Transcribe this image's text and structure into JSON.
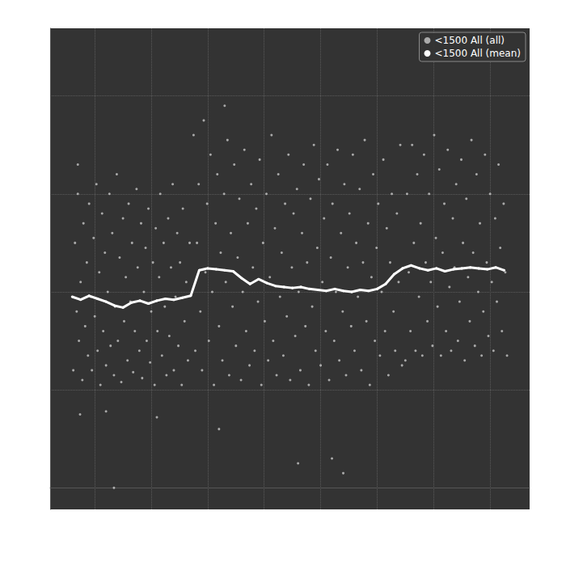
{
  "chart_data": {
    "type": "scatter",
    "xlim": [
      21,
      870
    ],
    "xticks": [
      100,
      200,
      300,
      400,
      500,
      600,
      700,
      800
    ],
    "ylim": [
      -22,
      469
    ],
    "yticks": [
      0,
      100,
      200,
      300,
      400
    ],
    "grid": true,
    "tick_labels": false,
    "legend": "upper right",
    "series": [
      {
        "name": "<1500 All (all)",
        "color": "#c8c8c8",
        "type": "scatter",
        "marker": "circle",
        "x": [
          62,
          65,
          68,
          70,
          72,
          75,
          78,
          80,
          83,
          86,
          88,
          90,
          93,
          95,
          98,
          100,
          103,
          105,
          108,
          110,
          113,
          115,
          118,
          120,
          123,
          126,
          128,
          131,
          134,
          136,
          139,
          141,
          144,
          147,
          150,
          152,
          155,
          158,
          160,
          163,
          166,
          168,
          171,
          174,
          176,
          179,
          182,
          184,
          187,
          190,
          192,
          195,
          198,
          200,
          203,
          206,
          208,
          211,
          214,
          216,
          219,
          222,
          224,
          227,
          230,
          232,
          235,
          238,
          240,
          243,
          246,
          248,
          251,
          254,
          256,
          259,
          262,
          265,
          268,
          74,
          120,
          210,
          134,
          70,
          275,
          278,
          281,
          284,
          287,
          290,
          293,
          296,
          299,
          302,
          305,
          308,
          311,
          314,
          317,
          320,
          323,
          326,
          329,
          332,
          335,
          338,
          341,
          344,
          347,
          350,
          353,
          356,
          359,
          362,
          365,
          368,
          371,
          374,
          377,
          380,
          383,
          386,
          389,
          392,
          395,
          398,
          401,
          404,
          407,
          410,
          413,
          416,
          419,
          422,
          425,
          428,
          431,
          434,
          437,
          440,
          443,
          446,
          449,
          452,
          455,
          458,
          461,
          464,
          467,
          470,
          473,
          476,
          479,
          482,
          485,
          488,
          491,
          494,
          497,
          500,
          503,
          506,
          509,
          512,
          515,
          518,
          521,
          524,
          527,
          530,
          533,
          536,
          539,
          542,
          545,
          548,
          551,
          554,
          557,
          560,
          563,
          566,
          569,
          572,
          575,
          578,
          581,
          584,
          587,
          590,
          593,
          596,
          599,
          602,
          605,
          608,
          611,
          614,
          617,
          620,
          623,
          626,
          629,
          632,
          635,
          638,
          641,
          644,
          320,
          460,
          520,
          540,
          330,
          650,
          653,
          656,
          659,
          662,
          665,
          668,
          671,
          674,
          677,
          680,
          683,
          686,
          689,
          692,
          695,
          698,
          701,
          704,
          707,
          710,
          713,
          716,
          719,
          722,
          725,
          728,
          731,
          734,
          737,
          740,
          743,
          746,
          749,
          752,
          755,
          758,
          761,
          764,
          767,
          770,
          773,
          776,
          779,
          782,
          785,
          788,
          791,
          794,
          797,
          800,
          803,
          806,
          809,
          812,
          815,
          818,
          821,
          824,
          827,
          830
        ],
        "values": [
          120,
          250,
          180,
          300,
          150,
          210,
          110,
          270,
          165,
          230,
          135,
          290,
          195,
          120,
          255,
          175,
          310,
          140,
          220,
          105,
          280,
          160,
          240,
          125,
          200,
          300,
          145,
          260,
          115,
          185,
          320,
          150,
          235,
          108,
          275,
          170,
          215,
          130,
          290,
          190,
          250,
          118,
          160,
          305,
          225,
          140,
          270,
          112,
          200,
          245,
          150,
          285,
          128,
          180,
          230,
          105,
          265,
          160,
          215,
          300,
          135,
          250,
          185,
          115,
          275,
          155,
          225,
          310,
          120,
          195,
          260,
          145,
          230,
          105,
          285,
          170,
          210,
          130,
          250,
          75,
          78,
          72,
          0,
          330,
          360,
          140,
          250,
          310,
          180,
          120,
          375,
          220,
          290,
          150,
          340,
          200,
          105,
          270,
          320,
          165,
          240,
          130,
          300,
          210,
          355,
          115,
          260,
          185,
          330,
          145,
          235,
          295,
          110,
          200,
          345,
          160,
          270,
          125,
          310,
          225,
          140,
          285,
          190,
          335,
          105,
          250,
          170,
          300,
          130,
          215,
          360,
          150,
          265,
          115,
          320,
          195,
          240,
          135,
          290,
          175,
          340,
          110,
          225,
          280,
          155,
          305,
          200,
          120,
          260,
          330,
          165,
          230,
          105,
          295,
          185,
          350,
          140,
          245,
          315,
          125,
          210,
          275,
          160,
          330,
          110,
          235,
          290,
          150,
          200,
          345,
          130,
          260,
          180,
          310,
          115,
          225,
          280,
          165,
          340,
          140,
          250,
          195,
          305,
          120,
          230,
          355,
          170,
          270,
          105,
          215,
          320,
          150,
          245,
          290,
          135,
          200,
          335,
          160,
          265,
          115,
          230,
          300,
          180,
          140,
          280,
          210,
          350,
          125,
          60,
          25,
          30,
          15,
          390,
          130,
          300,
          220,
          160,
          350,
          250,
          140,
          320,
          195,
          270,
          135,
          340,
          230,
          170,
          300,
          210,
          145,
          360,
          255,
          185,
          325,
          135,
          240,
          290,
          160,
          345,
          205,
          140,
          275,
          225,
          310,
          150,
          190,
          335,
          250,
          130,
          295,
          215,
          170,
          355,
          240,
          145,
          320,
          200,
          270,
          135,
          180,
          340,
          230,
          155,
          300,
          210,
          140,
          275,
          190,
          330,
          245,
          160,
          290,
          220,
          135
        ]
      },
      {
        "name": "<1500 All (mean)",
        "color": "#ffffff",
        "type": "line",
        "marker": "circle",
        "x": [
          60,
          75,
          90,
          105,
          120,
          135,
          150,
          165,
          180,
          195,
          210,
          225,
          240,
          255,
          270,
          285,
          300,
          315,
          330,
          345,
          360,
          375,
          390,
          405,
          420,
          435,
          450,
          465,
          480,
          495,
          510,
          525,
          540,
          555,
          570,
          585,
          600,
          615,
          630,
          645,
          660,
          675,
          690,
          705,
          720,
          735,
          750,
          765,
          780,
          795,
          810,
          825
        ],
        "values": [
          195,
          192,
          196,
          193,
          190,
          186,
          184,
          189,
          191,
          188,
          191,
          193,
          192,
          194,
          196,
          222,
          224,
          223,
          222,
          221,
          214,
          208,
          213,
          209,
          206,
          205,
          204,
          205,
          203,
          202,
          201,
          203,
          201,
          200,
          202,
          201,
          203,
          208,
          218,
          224,
          227,
          224,
          222,
          224,
          221,
          223,
          224,
          225,
          224,
          223,
          225,
          222
        ]
      }
    ]
  }
}
